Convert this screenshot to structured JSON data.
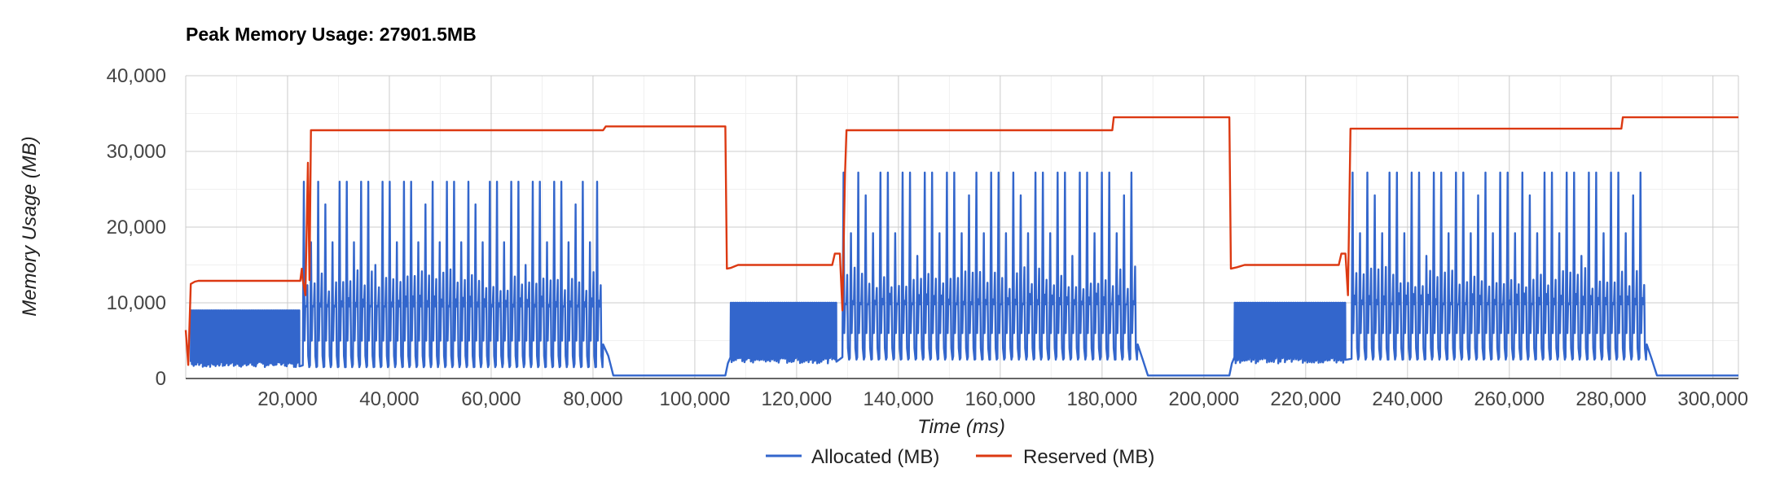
{
  "chart_data": {
    "type": "line",
    "title": "Peak Memory Usage: 27901.5MB",
    "xlabel": "Time (ms)",
    "ylabel": "Memory Usage (MB)",
    "xlim": [
      0,
      305000
    ],
    "ylim": [
      0,
      40000
    ],
    "x_ticks": [
      20000,
      40000,
      60000,
      80000,
      100000,
      120000,
      140000,
      160000,
      180000,
      200000,
      220000,
      240000,
      260000,
      280000,
      300000
    ],
    "x_tick_labels": [
      "20,000",
      "40,000",
      "60,000",
      "80,000",
      "100,000",
      "120,000",
      "140,000",
      "160,000",
      "180,000",
      "200,000",
      "220,000",
      "240,000",
      "260,000",
      "280,000",
      "300,000"
    ],
    "y_ticks": [
      0,
      10000,
      20000,
      30000,
      40000
    ],
    "y_tick_labels": [
      "0",
      "10,000",
      "20,000",
      "30,000",
      "40,000"
    ],
    "grid": true,
    "legend_position": "bottom",
    "series": [
      {
        "name": "Allocated (MB)",
        "color": "#3366cc",
        "approximate": true,
        "segments": [
          {
            "kind": "oscillate",
            "x_start": 1000,
            "x_end": 22500,
            "count": 60,
            "low": 1500,
            "high": 9000,
            "base": 1800
          },
          {
            "kind": "spikes",
            "x_start": 23000,
            "x_end": 82000,
            "count": 42,
            "low": 1500,
            "high": 26000,
            "mid": 9500
          },
          {
            "kind": "step",
            "points": [
              [
                82000,
                4500
              ],
              [
                83000,
                3000
              ],
              [
                84000,
                400
              ],
              [
                106000,
                400
              ],
              [
                106500,
                2000
              ],
              [
                107000,
                2800
              ]
            ]
          },
          {
            "kind": "oscillate",
            "x_start": 107000,
            "x_end": 128000,
            "count": 50,
            "low": 2000,
            "high": 10000,
            "base": 2500
          },
          {
            "kind": "spikes",
            "x_start": 129000,
            "x_end": 187000,
            "count": 40,
            "low": 2500,
            "high": 27200,
            "mid": 9800
          },
          {
            "kind": "step",
            "points": [
              [
                187000,
                4500
              ],
              [
                188000,
                2500
              ],
              [
                189000,
                400
              ],
              [
                205000,
                400
              ],
              [
                205500,
                2000
              ],
              [
                206000,
                2800
              ]
            ]
          },
          {
            "kind": "oscillate",
            "x_start": 206000,
            "x_end": 228000,
            "count": 50,
            "low": 2000,
            "high": 10000,
            "base": 2500
          },
          {
            "kind": "spikes",
            "x_start": 229000,
            "x_end": 287000,
            "count": 40,
            "low": 2500,
            "high": 27200,
            "mid": 9800
          },
          {
            "kind": "step",
            "points": [
              [
                287000,
                4500
              ],
              [
                288000,
                2500
              ],
              [
                289000,
                400
              ],
              [
                305000,
                400
              ]
            ]
          }
        ]
      },
      {
        "name": "Reserved (MB)",
        "color": "#dc3912",
        "approximate": true,
        "points": [
          [
            0,
            6400
          ],
          [
            500,
            1800
          ],
          [
            1000,
            12500
          ],
          [
            1800,
            12800
          ],
          [
            2500,
            12900
          ],
          [
            22500,
            12900
          ],
          [
            22800,
            14500
          ],
          [
            23000,
            13000
          ],
          [
            23500,
            11000
          ],
          [
            24000,
            28500
          ],
          [
            24300,
            13000
          ],
          [
            24600,
            32800
          ],
          [
            82000,
            32800
          ],
          [
            82500,
            33300
          ],
          [
            106000,
            33300
          ],
          [
            106300,
            14500
          ],
          [
            107000,
            14600
          ],
          [
            108500,
            15000
          ],
          [
            127000,
            15000
          ],
          [
            127500,
            16500
          ],
          [
            128500,
            16500
          ],
          [
            129000,
            9000
          ],
          [
            129500,
            27000
          ],
          [
            129800,
            32800
          ],
          [
            182000,
            32800
          ],
          [
            182300,
            34500
          ],
          [
            205000,
            34500
          ],
          [
            205300,
            14500
          ],
          [
            206500,
            14700
          ],
          [
            208000,
            15000
          ],
          [
            226500,
            15000
          ],
          [
            227000,
            16500
          ],
          [
            227800,
            16500
          ],
          [
            228300,
            11000
          ],
          [
            228800,
            33000
          ],
          [
            282000,
            33000
          ],
          [
            282300,
            34500
          ],
          [
            305000,
            34500
          ]
        ]
      }
    ]
  }
}
